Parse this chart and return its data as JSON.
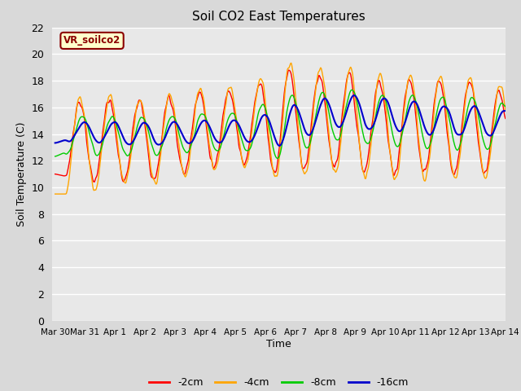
{
  "title": "Soil CO2 East Temperatures",
  "ylabel": "Soil Temperature (C)",
  "xlabel": "Time",
  "annotation": "VR_soilco2",
  "ylim": [
    0,
    22
  ],
  "yticks": [
    0,
    2,
    4,
    6,
    8,
    10,
    12,
    14,
    16,
    18,
    20,
    22
  ],
  "colors": {
    "-2cm": "#ff0000",
    "-4cm": "#ffa500",
    "-8cm": "#00cc00",
    "-16cm": "#0000cc"
  },
  "legend_labels": [
    "-2cm",
    "-4cm",
    "-8cm",
    "-16cm"
  ],
  "background_color": "#e8e8e8",
  "tick_labels": [
    "Mar 30",
    "Mar 31",
    "Apr 1",
    "Apr 2",
    "Apr 3",
    "Apr 4",
    "Apr 5",
    "Apr 6",
    "Apr 7",
    "Apr 8",
    "Apr 9",
    "Apr 10",
    "Apr 11",
    "Apr 12",
    "Apr 13",
    "Apr 14"
  ],
  "figsize": [
    6.4,
    4.8
  ],
  "dpi": 100
}
